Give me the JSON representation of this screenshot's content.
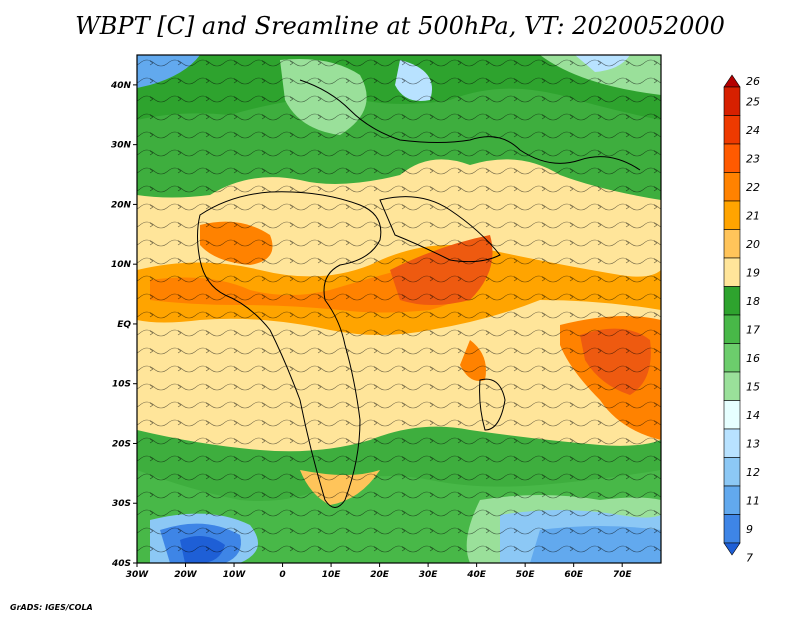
{
  "title": "WBPT [C] and Sreamline at 500hPa, VT: 2020052000",
  "credit": "GrADS: IGES/COLA",
  "map": {
    "lon_range": [
      -30,
      78
    ],
    "lat_range": [
      -40,
      45
    ],
    "x_ticks": [
      {
        "value": -30,
        "label": "30W"
      },
      {
        "value": -20,
        "label": "20W"
      },
      {
        "value": -10,
        "label": "10W"
      },
      {
        "value": 0,
        "label": "0"
      },
      {
        "value": 10,
        "label": "10E"
      },
      {
        "value": 20,
        "label": "20E"
      },
      {
        "value": 30,
        "label": "30E"
      },
      {
        "value": 40,
        "label": "40E"
      },
      {
        "value": 50,
        "label": "50E"
      },
      {
        "value": 60,
        "label": "60E"
      },
      {
        "value": 70,
        "label": "70E"
      }
    ],
    "y_ticks": [
      {
        "value": 40,
        "label": "40N"
      },
      {
        "value": 30,
        "label": "30N"
      },
      {
        "value": 20,
        "label": "20N"
      },
      {
        "value": 10,
        "label": "10N"
      },
      {
        "value": 0,
        "label": "EQ"
      },
      {
        "value": -10,
        "label": "10S"
      },
      {
        "value": -20,
        "label": "20S"
      },
      {
        "value": -30,
        "label": "30S"
      },
      {
        "value": -40,
        "label": "40S"
      }
    ]
  },
  "colorbar": {
    "levels": [
      "26",
      "25",
      "24",
      "23",
      "22",
      "21",
      "20",
      "19",
      "18",
      "17",
      "16",
      "15",
      "14",
      "13",
      "12",
      "11",
      "9",
      "7"
    ],
    "colors": [
      "#b40000",
      "#d72000",
      "#ee3a00",
      "#ff5a00",
      "#ff8200",
      "#ffa400",
      "#ffc45a",
      "#ffe59a",
      "#2ea32e",
      "#48b848",
      "#6ccd6c",
      "#9ae09a",
      "#e6ffff",
      "#b8e2ff",
      "#8cc8f5",
      "#62a9ee",
      "#3e85e6",
      "#1e5fd6"
    ]
  }
}
